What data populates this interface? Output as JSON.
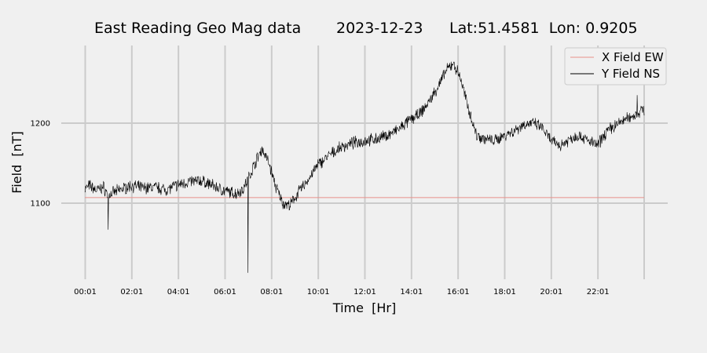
{
  "chart_data": {
    "type": "line",
    "title": {
      "station": "East Reading Geo Mag data",
      "date": "2023-12-23",
      "location": "Lat:51.4581  Lon: 0.9205"
    },
    "xlabel": "Time  [Hr]",
    "ylabel": "Field  [nT]",
    "x_unit": "hours",
    "xlim": [
      0.0,
      24.0
    ],
    "ylim": [
      1005,
      1297
    ],
    "x_ticks": [
      {
        "x": 0.0167,
        "label": "00:01"
      },
      {
        "x": 2.0167,
        "label": "02:01"
      },
      {
        "x": 4.0167,
        "label": "04:01"
      },
      {
        "x": 6.0167,
        "label": "06:01"
      },
      {
        "x": 8.0167,
        "label": "08:01"
      },
      {
        "x": 10.0167,
        "label": "10:01"
      },
      {
        "x": 12.0167,
        "label": "12:01"
      },
      {
        "x": 14.0167,
        "label": "14:01"
      },
      {
        "x": 16.0167,
        "label": "16:01"
      },
      {
        "x": 18.0167,
        "label": "18:01"
      },
      {
        "x": 20.0167,
        "label": "20:01"
      },
      {
        "x": 22.0167,
        "label": "22:01"
      }
    ],
    "extra_vgrid_x": [
      24.0
    ],
    "y_ticks": [
      {
        "y": 1100,
        "label": "1100"
      },
      {
        "y": 1200,
        "label": "1200"
      }
    ],
    "grid": true,
    "legend_position": "top-right",
    "series": [
      {
        "name": "X Field EW",
        "color": "#e8908a",
        "x": [
          0.0,
          24.0
        ],
        "y": [
          1107,
          1107
        ]
      },
      {
        "name": "Y Field NS",
        "color": "#000000",
        "noise": 6,
        "x": [
          0.0,
          0.2,
          0.5,
          0.8,
          1.0,
          1.3,
          1.6,
          2.0,
          2.5,
          3.0,
          3.5,
          4.0,
          4.5,
          5.0,
          5.5,
          6.0,
          6.5,
          6.8,
          7.0,
          7.3,
          7.6,
          7.9,
          8.2,
          8.5,
          8.8,
          9.2,
          9.6,
          10.0,
          10.5,
          11.0,
          11.5,
          12.0,
          12.5,
          13.0,
          13.5,
          14.0,
          14.4,
          14.8,
          15.2,
          15.5,
          15.8,
          16.1,
          16.4,
          16.8,
          17.2,
          17.6,
          18.0,
          18.4,
          18.8,
          19.2,
          19.6,
          20.0,
          20.4,
          20.8,
          21.2,
          21.6,
          22.0,
          22.4,
          22.8,
          23.2,
          23.6,
          24.0
        ],
        "y": [
          1118,
          1122,
          1116,
          1120,
          1110,
          1114,
          1118,
          1122,
          1119,
          1120,
          1117,
          1123,
          1127,
          1128,
          1122,
          1115,
          1112,
          1118,
          1130,
          1150,
          1168,
          1150,
          1120,
          1100,
          1097,
          1115,
          1130,
          1148,
          1160,
          1170,
          1175,
          1178,
          1180,
          1185,
          1193,
          1205,
          1212,
          1228,
          1248,
          1265,
          1275,
          1258,
          1225,
          1185,
          1180,
          1178,
          1185,
          1190,
          1198,
          1200,
          1195,
          1178,
          1172,
          1180,
          1185,
          1178,
          1172,
          1190,
          1198,
          1205,
          1210,
          1218
        ]
      }
    ],
    "spikes": [
      {
        "x": 1.0,
        "y": 1067
      },
      {
        "x": 7.0,
        "y": 1013
      },
      {
        "x": 16.0,
        "y": 1268
      },
      {
        "x": 23.7,
        "y": 1235
      }
    ]
  }
}
